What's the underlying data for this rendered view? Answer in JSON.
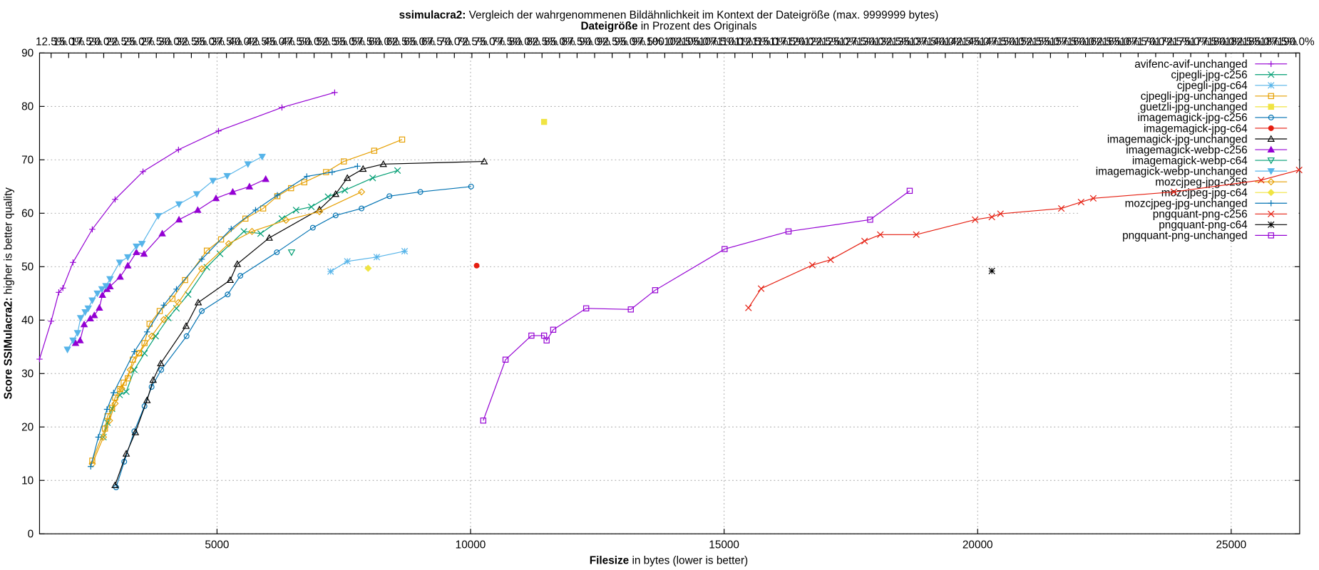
{
  "chart_data": {
    "type": "line",
    "title_bold": "ssimulacra2:",
    "title": " Vergleich der wahrgenommenen Bildähnlichkeit im Kontext der Dateigröße (max. 9999999 bytes)",
    "x2_label_bold": "Dateigröße",
    "x2_label": " in Prozent des Originals",
    "x_label_bold": "Filesize",
    "x_label": " in bytes (lower is better)",
    "y_label_bold": "Score SSIMulacra2:",
    "y_label": " higher is better quality",
    "xlim": [
      1500,
      26350
    ],
    "xticks": [
      5000,
      10000,
      15000,
      20000,
      25000
    ],
    "ylim": [
      0,
      90
    ],
    "yticks": [
      0,
      10,
      20,
      30,
      40,
      50,
      60,
      70,
      80,
      90
    ],
    "x2lim": [
      10.85,
      190.53
    ],
    "x2ticks": [
      {
        "value": 12.5,
        "label": "12.5%"
      },
      {
        "value": 15,
        "label": "15.0%"
      },
      {
        "value": 17.5,
        "label": "17.5%"
      },
      {
        "value": 20,
        "label": "20.0%"
      },
      {
        "value": 22.5,
        "label": "22.5%"
      },
      {
        "value": 25,
        "label": "25.0%"
      },
      {
        "value": 27.5,
        "label": "27.5%"
      },
      {
        "value": 30,
        "label": "30.0%"
      },
      {
        "value": 32.5,
        "label": "32.5%"
      },
      {
        "value": 35,
        "label": "35.0%"
      },
      {
        "value": 37.5,
        "label": "37.5%"
      },
      {
        "value": 40,
        "label": "40.0%"
      },
      {
        "value": 42.5,
        "label": "42.5%"
      },
      {
        "value": 45,
        "label": "45.0%"
      },
      {
        "value": 47.5,
        "label": "47.5%"
      },
      {
        "value": 50,
        "label": "50.0%"
      },
      {
        "value": 52.5,
        "label": "52.5%"
      },
      {
        "value": 55,
        "label": "55.0%"
      },
      {
        "value": 57.5,
        "label": "57.5%"
      },
      {
        "value": 60,
        "label": "60.0%"
      },
      {
        "value": 62.5,
        "label": "62.5%"
      },
      {
        "value": 65,
        "label": "65.0%"
      },
      {
        "value": 67.5,
        "label": "67.5%"
      },
      {
        "value": 70,
        "label": "70.0%"
      },
      {
        "value": 72.5,
        "label": "72.5%"
      },
      {
        "value": 75,
        "label": "75.0%"
      },
      {
        "value": 77.5,
        "label": "77.5%"
      },
      {
        "value": 80,
        "label": "80.0%"
      },
      {
        "value": 82.5,
        "label": "82.5%"
      },
      {
        "value": 85,
        "label": "85.0%"
      },
      {
        "value": 87.5,
        "label": "87.5%"
      },
      {
        "value": 90,
        "label": "90.0%"
      },
      {
        "value": 92.5,
        "label": "92.5%"
      },
      {
        "value": 95,
        "label": "95.0%"
      },
      {
        "value": 97.5,
        "label": "97.5%"
      },
      {
        "value": 100,
        "label": "100.0%"
      },
      {
        "value": 102.5,
        "label": "102.5%"
      },
      {
        "value": 105,
        "label": "105.0%"
      },
      {
        "value": 107.5,
        "label": "107.5%"
      },
      {
        "value": 110,
        "label": "110.0%"
      },
      {
        "value": 112.5,
        "label": "112.5%"
      },
      {
        "value": 115,
        "label": "115.0%"
      },
      {
        "value": 117.5,
        "label": "117.5%"
      },
      {
        "value": 120,
        "label": "120.0%"
      },
      {
        "value": 122.5,
        "label": "122.5%"
      },
      {
        "value": 125,
        "label": "125.0%"
      },
      {
        "value": 127.5,
        "label": "127.5%"
      },
      {
        "value": 130,
        "label": "130.0%"
      },
      {
        "value": 132.5,
        "label": "132.5%"
      },
      {
        "value": 135,
        "label": "135.0%"
      },
      {
        "value": 137.5,
        "label": "137.5%"
      },
      {
        "value": 140,
        "label": "140.0%"
      },
      {
        "value": 142.5,
        "label": "142.5%"
      },
      {
        "value": 145,
        "label": "145.0%"
      },
      {
        "value": 147.5,
        "label": "147.5%"
      },
      {
        "value": 150,
        "label": "150.0%"
      },
      {
        "value": 152.5,
        "label": "152.5%"
      },
      {
        "value": 155,
        "label": "155.0%"
      },
      {
        "value": 157.5,
        "label": "157.5%"
      },
      {
        "value": 160,
        "label": "160.0%"
      },
      {
        "value": 162.5,
        "label": "162.5%"
      },
      {
        "value": 165,
        "label": "165.0%"
      },
      {
        "value": 167.5,
        "label": "167.5%"
      },
      {
        "value": 170,
        "label": "170.0%"
      },
      {
        "value": 172.5,
        "label": "172.5%"
      },
      {
        "value": 175,
        "label": "175.0%"
      },
      {
        "value": 177.5,
        "label": "177.5%"
      },
      {
        "value": 180,
        "label": "180.0%"
      },
      {
        "value": 182.5,
        "label": "182.5%"
      },
      {
        "value": 185,
        "label": "185.0%"
      },
      {
        "value": 187.5,
        "label": "187.5%"
      },
      {
        "value": 190,
        "label": "190.0%"
      }
    ],
    "grid": true,
    "legend": "top-right",
    "series": [
      {
        "name": "avifenc-avif-unchanged",
        "color": "#9400d3",
        "marker": "plus",
        "x": [
          1500,
          1730,
          1880,
          1960,
          2160,
          2540,
          2990,
          3540,
          4240,
          5030,
          6280,
          7320
        ],
        "values": [
          32.7,
          39.8,
          45.2,
          46,
          50.8,
          57,
          62.6,
          67.8,
          71.9,
          75.4,
          79.8,
          82.6
        ]
      },
      {
        "name": "cjpegli-jpg-c256",
        "color": "#009e73",
        "marker": "cross",
        "x": [
          2760,
          2840,
          2930,
          3080,
          3210,
          3370,
          3570,
          3790,
          4040,
          4200,
          4430,
          4800,
          5060,
          5530,
          5860,
          6280,
          6560,
          6860,
          7190,
          7520,
          8070,
          8560
        ],
        "values": [
          18.1,
          20.8,
          23.4,
          26,
          26.6,
          30.7,
          33.8,
          37,
          40.4,
          42.2,
          44.8,
          49.9,
          52.4,
          56.6,
          56.2,
          59,
          60.6,
          61.2,
          63.1,
          64.3,
          66.6,
          68
        ]
      },
      {
        "name": "cjpegli-jpg-c64",
        "color": "#56b4e9",
        "marker": "star",
        "x": [
          7240,
          7570,
          8150,
          8700
        ],
        "values": [
          49.1,
          51,
          51.8,
          52.9
        ]
      },
      {
        "name": "cjpegli-jpg-unchanged",
        "color": "#e69f00",
        "marker": "square",
        "x": [
          2540,
          2790,
          2840,
          2930,
          2990,
          3090,
          3160,
          3240,
          3340,
          3460,
          3570,
          3670,
          3870,
          4120,
          4370,
          4800,
          5080,
          5560,
          5910,
          6190,
          6460,
          6720,
          7150,
          7500,
          8100,
          8650
        ],
        "values": [
          13.7,
          19.7,
          22,
          23.6,
          25.5,
          27.1,
          28.3,
          29.1,
          32.6,
          33.8,
          35.7,
          39.3,
          41.7,
          44,
          47.5,
          53,
          55.1,
          59,
          60.9,
          63.2,
          64.7,
          65.8,
          67.7,
          69.7,
          71.7,
          73.8
        ]
      },
      {
        "name": "guetzli-jpg-unchanged",
        "color": "#f0e442",
        "marker": "square-filled",
        "x": [
          11450
        ],
        "values": [
          77.1
        ]
      },
      {
        "name": "imagemagick-jpg-c256",
        "color": "#0072b2",
        "marker": "circle",
        "x": [
          3010,
          3170,
          3370,
          3570,
          3710,
          3900,
          4400,
          4700,
          5210,
          5460,
          6180,
          6890,
          7340,
          7850,
          8400,
          9010,
          10010
        ],
        "values": [
          8.7,
          13.5,
          19.2,
          23.9,
          27.5,
          30.7,
          37,
          41.7,
          44.8,
          48.3,
          52.7,
          57.3,
          59.6,
          60.9,
          63.2,
          64,
          65
        ]
      },
      {
        "name": "imagemagick-jpg-c64",
        "color": "#e51e10",
        "marker": "circle-filled",
        "x": [
          10120
        ],
        "values": [
          50.2
        ]
      },
      {
        "name": "imagemagick-jpg-unchanged",
        "color": "#000000",
        "marker": "triangle",
        "x": [
          2990,
          3210,
          3390,
          3620,
          3740,
          3890,
          4390,
          4630,
          5260,
          5400,
          6030,
          7020,
          7340,
          7570,
          7880,
          8280,
          10270
        ],
        "values": [
          9.1,
          15,
          19,
          25,
          28.8,
          31.9,
          38.9,
          43.3,
          47.5,
          50.5,
          55.4,
          60.7,
          63.6,
          66.6,
          68.3,
          69.2,
          69.7
        ]
      },
      {
        "name": "imagemagick-webp-c256",
        "color": "#9400d3",
        "marker": "triangle-filled",
        "x": [
          2210,
          2300,
          2380,
          2500,
          2580,
          2680,
          2740,
          2830,
          2890,
          3090,
          3240,
          3410,
          3560,
          3920,
          4250,
          4620,
          4980,
          5310,
          5640,
          5960
        ],
        "values": [
          35.7,
          36.2,
          39.2,
          40.3,
          40.9,
          42.3,
          44.7,
          45.8,
          46.3,
          48.1,
          50.2,
          52.7,
          52.4,
          56.2,
          58.8,
          60.6,
          62.8,
          64,
          65,
          66.4
        ]
      },
      {
        "name": "imagemagick-webp-c64",
        "color": "#009e73",
        "marker": "triangle-down",
        "x": [
          6470
        ],
        "values": [
          52.7
        ]
      },
      {
        "name": "imagemagick-webp-unchanged",
        "color": "#56b4e9",
        "marker": "triangle-down-filled",
        "x": [
          2050,
          2160,
          2250,
          2310,
          2400,
          2460,
          2540,
          2640,
          2730,
          2810,
          2890,
          3080,
          3240,
          3410,
          3520,
          3840,
          4250,
          4600,
          4920,
          5200,
          5610,
          5890
        ],
        "values": [
          34.5,
          36.2,
          37.6,
          40.4,
          41.5,
          42.2,
          43.7,
          45,
          45.8,
          46.4,
          47.7,
          50.8,
          51.8,
          53.8,
          54.3,
          59.5,
          61.7,
          63.6,
          66.1,
          67,
          69.2,
          70.6
        ]
      },
      {
        "name": "mozcjpeg-jpg-c256",
        "color": "#e69f00",
        "marker": "diamond",
        "x": [
          2540,
          2760,
          2880,
          2990,
          3120,
          3290,
          3460,
          3710,
          3950,
          4240,
          4700,
          5230,
          5690,
          6360,
          7020,
          7850
        ],
        "values": [
          13.1,
          18.1,
          21.2,
          24.4,
          27.2,
          30.7,
          33.8,
          37,
          40.1,
          43.3,
          49.6,
          54.3,
          56.6,
          58.7,
          60.3,
          64
        ]
      },
      {
        "name": "mozcjpeg-jpg-c64",
        "color": "#f0e442",
        "marker": "diamond-filled",
        "x": [
          7980
        ],
        "values": [
          49.7
        ]
      },
      {
        "name": "mozcjpeg-jpg-unchanged",
        "color": "#0072b2",
        "marker": "plus",
        "x": [
          2510,
          2660,
          2830,
          2960,
          3370,
          3620,
          3950,
          4200,
          4700,
          5280,
          5760,
          6190,
          6770,
          7270,
          7770
        ],
        "values": [
          12.6,
          18.1,
          23.3,
          26.4,
          34.1,
          37.8,
          42.8,
          45.8,
          51.4,
          57.1,
          60.6,
          63.4,
          66.9,
          67.7,
          68.8
        ]
      },
      {
        "name": "pngquant-png-c256",
        "color": "#e51e10",
        "marker": "cross",
        "x": [
          15480,
          15730,
          16740,
          17100,
          17770,
          18080,
          18790,
          19950,
          20280,
          20450,
          21650,
          22040,
          22280,
          23870,
          25590,
          26340
        ],
        "values": [
          42.3,
          45.9,
          50.3,
          51.3,
          54.8,
          56,
          56,
          58.8,
          59.3,
          59.9,
          60.9,
          62.1,
          62.8,
          64,
          66.2,
          68.1
        ]
      },
      {
        "name": "pngquant-png-c64",
        "color": "#000000",
        "marker": "star",
        "x": [
          20280
        ],
        "values": [
          49.2
        ]
      },
      {
        "name": "pngquant-png-unchanged",
        "color": "#9400d3",
        "marker": "square",
        "x": [
          10250,
          10690,
          11200,
          11450,
          11500,
          11630,
          12280,
          13160,
          13640,
          15010,
          16270,
          17880,
          18660
        ],
        "values": [
          21.2,
          32.6,
          37.1,
          37.1,
          36.2,
          38.2,
          42.2,
          42,
          45.6,
          53.3,
          56.6,
          58.8,
          64.2
        ]
      }
    ]
  }
}
